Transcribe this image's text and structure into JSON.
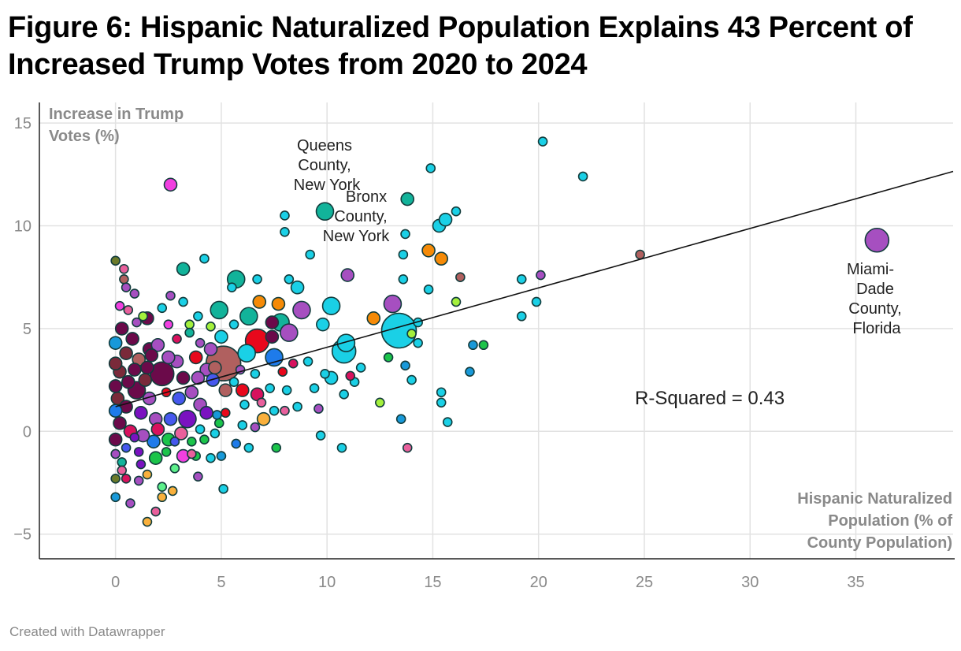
{
  "chart_data": {
    "type": "scatter",
    "title": "Figure 6: Hispanic Naturalized Population Explains 43 Percent of Increased Trump Votes from 2020 to 2024",
    "xlabel": [
      "Hispanic Naturalized",
      "Population (% of",
      "County Population)"
    ],
    "ylabel": [
      "Increase in Trump",
      "Votes (%)"
    ],
    "xlim": [
      -3.6,
      39.6
    ],
    "ylim": [
      -6.2,
      16
    ],
    "x_ticks": [
      "0",
      "5",
      "10",
      "15",
      "20",
      "25",
      "30",
      "35"
    ],
    "x_tick_values": [
      0,
      5,
      10,
      15,
      20,
      25,
      30,
      35
    ],
    "y_ticks": [
      "15",
      "10",
      "5",
      "0",
      "−5"
    ],
    "y_tick_values": [
      15,
      10,
      5,
      0,
      -5
    ],
    "grid": true,
    "trendline": {
      "intercept": 1.2,
      "slope": 0.289
    },
    "r_squared_label": "R-Squared = 0.43",
    "annotations": [
      {
        "label": [
          "Queens",
          "County,",
          "New York"
        ],
        "x": 9.9,
        "y": 10.7
      },
      {
        "label": [
          "Bronx",
          "County,",
          "New York"
        ],
        "x": 13.8,
        "y": 11.3
      },
      {
        "label": [
          "Miami-",
          "Dade",
          "County,",
          "Florida"
        ],
        "x": 36.0,
        "y": 9.3
      }
    ],
    "palette": [
      "#12b39a",
      "#1ad0e6",
      "#a64fc0",
      "#f13fe0",
      "#6b0a4a",
      "#b0605f",
      "#e8081c",
      "#1e7bea",
      "#f58a07",
      "#1bc44a",
      "#a4f03c",
      "#7a12c0",
      "#d8125e",
      "#e8609c",
      "#4658ee",
      "#6b7a2a",
      "#f9b03c",
      "#7a2a3a",
      "#1899d9",
      "#5cf08a"
    ],
    "point_fields": [
      "x",
      "y",
      "relative_population",
      "color_index"
    ],
    "points": [
      [
        36.0,
        9.3,
        4,
        2
      ],
      [
        9.9,
        10.7,
        3,
        0
      ],
      [
        13.8,
        11.3,
        2,
        0
      ],
      [
        20.2,
        14.1,
        1,
        1
      ],
      [
        22.1,
        12.4,
        1,
        1
      ],
      [
        14.9,
        12.8,
        1,
        1
      ],
      [
        2.6,
        12.0,
        2,
        3
      ],
      [
        24.8,
        8.6,
        1,
        5
      ],
      [
        20.1,
        7.6,
        1,
        2
      ],
      [
        19.2,
        7.4,
        1,
        1
      ],
      [
        19.9,
        6.3,
        1,
        1
      ],
      [
        19.2,
        5.6,
        1,
        1
      ],
      [
        16.9,
        4.2,
        1,
        18
      ],
      [
        17.4,
        4.2,
        1,
        9
      ],
      [
        16.75,
        2.9,
        1,
        18
      ],
      [
        15.4,
        1.9,
        1,
        1
      ],
      [
        15.4,
        1.4,
        1,
        1
      ],
      [
        15.7,
        0.45,
        1,
        1
      ],
      [
        16.1,
        6.3,
        1,
        10
      ],
      [
        16.3,
        7.5,
        1,
        5
      ],
      [
        14.8,
        8.8,
        2,
        8
      ],
      [
        15.4,
        8.4,
        2,
        8
      ],
      [
        15.3,
        10.0,
        2,
        1
      ],
      [
        15.6,
        10.3,
        2,
        1
      ],
      [
        16.1,
        10.7,
        1,
        1
      ],
      [
        13.7,
        9.6,
        1,
        1
      ],
      [
        13.6,
        8.6,
        1,
        1
      ],
      [
        13.6,
        7.4,
        1,
        1
      ],
      [
        14.8,
        6.9,
        1,
        1
      ],
      [
        13.1,
        6.2,
        3,
        2
      ],
      [
        13.4,
        4.9,
        5,
        1
      ],
      [
        12.2,
        5.5,
        2,
        8
      ],
      [
        14.3,
        5.3,
        1,
        1
      ],
      [
        14.3,
        4.3,
        1,
        1
      ],
      [
        14.0,
        4.75,
        1,
        10
      ],
      [
        13.7,
        3.2,
        1,
        18
      ],
      [
        13.5,
        0.6,
        1,
        18
      ],
      [
        13.8,
        -0.8,
        1,
        13
      ],
      [
        14.0,
        2.5,
        1,
        1
      ],
      [
        12.5,
        1.4,
        1,
        10
      ],
      [
        12.9,
        3.6,
        1,
        9
      ],
      [
        10.97,
        7.6,
        2,
        2
      ],
      [
        10.2,
        6.1,
        3,
        1
      ],
      [
        10.8,
        3.9,
        4,
        1
      ],
      [
        10.9,
        4.3,
        3,
        1
      ],
      [
        10.2,
        2.6,
        2,
        1
      ],
      [
        10.7,
        -0.8,
        1,
        1
      ],
      [
        9.7,
        -0.2,
        1,
        1
      ],
      [
        9.2,
        8.6,
        1,
        1
      ],
      [
        8.0,
        10.5,
        1,
        1
      ],
      [
        8.0,
        9.7,
        1,
        1
      ],
      [
        8.2,
        7.4,
        1,
        1
      ],
      [
        8.6,
        7.0,
        2,
        1
      ],
      [
        8.8,
        5.9,
        3,
        2
      ],
      [
        7.7,
        6.2,
        2,
        8
      ],
      [
        6.8,
        6.3,
        2,
        8
      ],
      [
        6.7,
        7.4,
        1,
        1
      ],
      [
        5.7,
        7.4,
        3,
        0
      ],
      [
        5.5,
        7.0,
        1,
        1
      ],
      [
        4.9,
        5.9,
        3,
        0
      ],
      [
        6.3,
        5.6,
        3,
        0
      ],
      [
        6.7,
        4.4,
        4,
        6
      ],
      [
        7.5,
        3.6,
        3,
        7
      ],
      [
        7.4,
        5.3,
        2,
        4
      ],
      [
        7.4,
        4.6,
        2,
        4
      ],
      [
        5.1,
        3.3,
        5,
        5
      ],
      [
        5.2,
        2.0,
        2,
        5
      ],
      [
        6.2,
        3.8,
        3,
        1
      ],
      [
        7.8,
        5.3,
        3,
        0
      ],
      [
        8.2,
        4.8,
        3,
        2
      ],
      [
        9.8,
        5.2,
        2,
        1
      ],
      [
        9.1,
        3.4,
        1,
        1
      ],
      [
        8.4,
        3.3,
        1,
        12
      ],
      [
        7.9,
        2.9,
        1,
        6
      ],
      [
        9.9,
        2.8,
        1,
        1
      ],
      [
        11.6,
        3.1,
        1,
        1
      ],
      [
        11.3,
        2.4,
        1,
        1
      ],
      [
        11.1,
        2.7,
        1,
        12
      ],
      [
        9.4,
        2.1,
        1,
        1
      ],
      [
        8.6,
        1.2,
        1,
        1
      ],
      [
        8.0,
        1.0,
        1,
        13
      ],
      [
        9.6,
        1.1,
        1,
        2
      ],
      [
        10.8,
        1.8,
        1,
        1
      ],
      [
        6.0,
        2.0,
        2,
        6
      ],
      [
        6.7,
        1.8,
        2,
        12
      ],
      [
        7.5,
        1.0,
        1,
        1
      ],
      [
        7.0,
        0.6,
        2,
        16
      ],
      [
        6.0,
        0.3,
        1,
        1
      ],
      [
        5.7,
        -0.6,
        1,
        7
      ],
      [
        6.3,
        -0.8,
        1,
        1
      ],
      [
        5.2,
        0.9,
        1,
        6
      ],
      [
        4.8,
        0.8,
        1,
        18
      ],
      [
        4.0,
        0.1,
        1,
        1
      ],
      [
        4.5,
        -1.3,
        1,
        1
      ],
      [
        5.0,
        -1.2,
        1,
        18
      ],
      [
        5.1,
        -2.8,
        1,
        1
      ],
      [
        7.6,
        -0.8,
        1,
        9
      ],
      [
        6.6,
        0.2,
        1,
        2
      ],
      [
        3.2,
        -1.2,
        2,
        3
      ],
      [
        2.7,
        -2.9,
        1,
        16
      ],
      [
        1.5,
        -4.4,
        1,
        16
      ],
      [
        0.0,
        -3.2,
        1,
        18
      ],
      [
        1.9,
        -3.9,
        1,
        13
      ],
      [
        0.7,
        -3.5,
        1,
        2
      ],
      [
        3.9,
        -2.2,
        1,
        2
      ],
      [
        2.2,
        -3.2,
        1,
        16
      ],
      [
        2.2,
        -2.7,
        1,
        19
      ],
      [
        1.5,
        -2.1,
        1,
        16
      ],
      [
        1.1,
        -2.4,
        1,
        2
      ],
      [
        0.5,
        -2.3,
        1,
        12
      ],
      [
        0.0,
        -2.3,
        1,
        15
      ],
      [
        3.8,
        -1.2,
        1,
        9
      ],
      [
        2.4,
        -1.0,
        1,
        9
      ],
      [
        1.8,
        -0.5,
        2,
        7
      ],
      [
        0.9,
        -0.3,
        1,
        11
      ],
      [
        2.8,
        -0.5,
        1,
        14
      ],
      [
        0.3,
        -1.5,
        1,
        0
      ],
      [
        1.2,
        -1.6,
        1,
        11
      ],
      [
        0.0,
        8.3,
        1,
        15
      ],
      [
        0.4,
        7.9,
        1,
        13
      ],
      [
        0.4,
        7.4,
        1,
        5
      ],
      [
        0.5,
        7.0,
        1,
        2
      ],
      [
        0.9,
        6.7,
        1,
        2
      ],
      [
        0.2,
        6.1,
        1,
        3
      ],
      [
        1.3,
        5.6,
        1,
        10
      ],
      [
        1.5,
        5.5,
        2,
        4
      ],
      [
        3.2,
        7.9,
        2,
        0
      ],
      [
        3.2,
        6.3,
        1,
        1
      ],
      [
        4.2,
        8.4,
        1,
        1
      ],
      [
        2.2,
        6.0,
        1,
        1
      ],
      [
        2.6,
        6.6,
        1,
        2
      ],
      [
        3.5,
        5.2,
        1,
        10
      ],
      [
        0.3,
        5.0,
        2,
        4
      ],
      [
        0.8,
        4.5,
        2,
        4
      ],
      [
        1.6,
        4.0,
        2,
        4
      ],
      [
        2.0,
        4.2,
        2,
        2
      ],
      [
        2.9,
        4.5,
        1,
        12
      ],
      [
        3.5,
        4.8,
        1,
        0
      ],
      [
        4.0,
        4.3,
        1,
        2
      ],
      [
        4.5,
        4.0,
        2,
        2
      ],
      [
        0.5,
        3.8,
        2,
        17
      ],
      [
        1.1,
        3.5,
        2,
        5
      ],
      [
        1.5,
        3.1,
        2,
        4
      ],
      [
        2.2,
        2.8,
        4,
        4
      ],
      [
        2.9,
        3.4,
        2,
        2
      ],
      [
        3.8,
        3.6,
        2,
        6
      ],
      [
        4.3,
        3.0,
        2,
        2
      ],
      [
        4.6,
        2.5,
        2,
        14
      ],
      [
        0.2,
        2.9,
        2,
        17
      ],
      [
        0.6,
        2.4,
        2,
        4
      ],
      [
        1.0,
        2.0,
        3,
        4
      ],
      [
        1.6,
        1.6,
        2,
        2
      ],
      [
        2.4,
        1.9,
        1,
        6
      ],
      [
        3.0,
        1.6,
        2,
        14
      ],
      [
        3.6,
        1.9,
        2,
        2
      ],
      [
        4.0,
        1.3,
        2,
        2
      ],
      [
        0.1,
        1.6,
        2,
        17
      ],
      [
        0.5,
        1.2,
        2,
        4
      ],
      [
        1.2,
        0.9,
        2,
        11
      ],
      [
        1.9,
        0.6,
        2,
        2
      ],
      [
        2.6,
        0.6,
        2,
        14
      ],
      [
        3.4,
        0.6,
        3,
        11
      ],
      [
        4.3,
        0.9,
        2,
        11
      ],
      [
        4.9,
        0.4,
        1,
        9
      ],
      [
        0.2,
        0.4,
        2,
        4
      ],
      [
        0.7,
        0.0,
        2,
        12
      ],
      [
        1.3,
        -0.2,
        2,
        2
      ],
      [
        2.0,
        0.1,
        2,
        12
      ],
      [
        2.5,
        -0.4,
        2,
        9
      ],
      [
        3.1,
        -0.1,
        2,
        13
      ],
      [
        3.6,
        -0.5,
        1,
        9
      ],
      [
        0.0,
        4.3,
        2,
        18
      ],
      [
        0.0,
        3.3,
        2,
        17
      ],
      [
        0.0,
        2.2,
        2,
        4
      ],
      [
        0.0,
        1.0,
        2,
        7
      ],
      [
        0.0,
        -0.4,
        2,
        4
      ],
      [
        0.0,
        -1.1,
        1,
        2
      ],
      [
        0.3,
        -1.9,
        1,
        13
      ],
      [
        0.9,
        3.0,
        2,
        4
      ],
      [
        1.4,
        2.5,
        2,
        17
      ],
      [
        1.7,
        3.7,
        2,
        4
      ],
      [
        2.5,
        3.6,
        2,
        2
      ],
      [
        3.2,
        2.6,
        2,
        4
      ],
      [
        3.9,
        2.6,
        2,
        2
      ],
      [
        4.7,
        3.1,
        2,
        5
      ],
      [
        5.6,
        2.4,
        1,
        1
      ],
      [
        5.9,
        3.0,
        1,
        2
      ],
      [
        6.6,
        2.8,
        1,
        1
      ],
      [
        6.1,
        1.3,
        1,
        1
      ],
      [
        6.9,
        1.4,
        1,
        13
      ],
      [
        7.3,
        2.1,
        1,
        1
      ],
      [
        8.1,
        2.0,
        1,
        1
      ],
      [
        3.9,
        5.6,
        1,
        1
      ],
      [
        4.5,
        5.1,
        1,
        10
      ],
      [
        5.0,
        4.6,
        2,
        1
      ],
      [
        5.6,
        5.2,
        1,
        1
      ],
      [
        2.5,
        5.2,
        1,
        3
      ],
      [
        1.0,
        5.3,
        1,
        2
      ],
      [
        0.6,
        5.9,
        1,
        13
      ],
      [
        1.9,
        -1.3,
        2,
        9
      ],
      [
        2.8,
        -1.8,
        1,
        19
      ],
      [
        0.5,
        -0.8,
        1,
        14
      ],
      [
        1.1,
        -1.0,
        1,
        11
      ],
      [
        3.6,
        -1.1,
        1,
        13
      ],
      [
        4.2,
        -0.4,
        1,
        9
      ],
      [
        4.7,
        -0.1,
        1,
        1
      ]
    ]
  },
  "footer": "Created with Datawrapper"
}
